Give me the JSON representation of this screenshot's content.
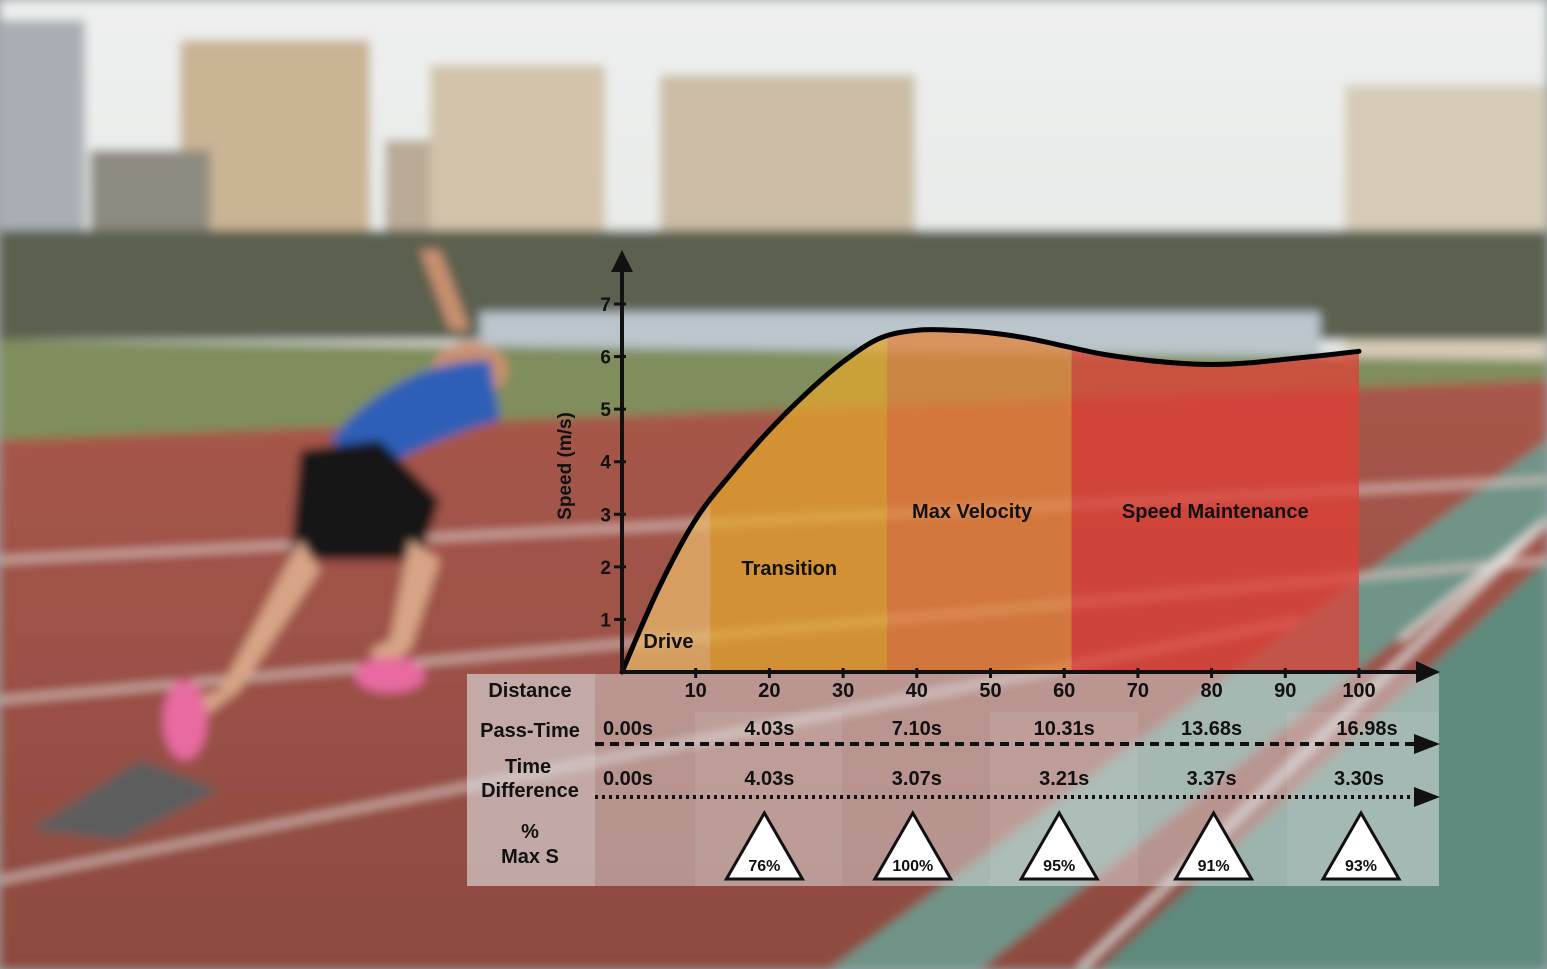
{
  "chart_data": {
    "type": "line",
    "title": "",
    "xlabel": "",
    "ylabel": "Speed (m/s)",
    "xlim": [
      0,
      100
    ],
    "ylim": [
      0,
      7
    ],
    "x_ticks": [
      10,
      20,
      30,
      40,
      50,
      60,
      70,
      80,
      90,
      100
    ],
    "y_ticks": [
      1,
      2,
      3,
      4,
      5,
      6,
      7
    ],
    "grid": false,
    "series": [
      {
        "name": "",
        "x": [
          0,
          5,
          10,
          15,
          20,
          25,
          30,
          35,
          40,
          45,
          50,
          55,
          60,
          65,
          70,
          75,
          80,
          85,
          90,
          95,
          100
        ],
        "y": [
          0,
          1.6,
          2.9,
          3.8,
          4.6,
          5.3,
          5.9,
          6.35,
          6.5,
          6.5,
          6.45,
          6.35,
          6.2,
          6.05,
          5.95,
          5.88,
          5.85,
          5.88,
          5.95,
          6.02,
          6.1
        ]
      }
    ],
    "phases": [
      {
        "label": "Drive",
        "from": 0,
        "to": 12,
        "color": "#e8b86a"
      },
      {
        "label": "Transition",
        "from": 12,
        "to": 36,
        "color": "#e3a52e"
      },
      {
        "label": "Max Velocity",
        "from": 36,
        "to": 61,
        "color": "#e3833a"
      },
      {
        "label": "Speed Maintenance",
        "from": 61,
        "to": 100,
        "color": "#df3f36"
      }
    ]
  },
  "table": {
    "distance_label": "Distance",
    "pass_time_label": "Pass-Time",
    "time_difference_label_line1": "Time",
    "time_difference_label_line2": "Difference",
    "max_speed_label_line1": "%",
    "max_speed_label_line2": "Max S",
    "pass_times": [
      {
        "at": 0,
        "value": "0.00s"
      },
      {
        "at": 20,
        "value": "4.03s"
      },
      {
        "at": 40,
        "value": "7.10s"
      },
      {
        "at": 60,
        "value": "10.31s"
      },
      {
        "at": 80,
        "value": "13.68s"
      },
      {
        "at": 100,
        "value": "16.98s"
      }
    ],
    "time_differences": [
      {
        "at": 0,
        "value": "0.00s"
      },
      {
        "at": 20,
        "value": "4.03s"
      },
      {
        "at": 40,
        "value": "3.07s"
      },
      {
        "at": 60,
        "value": "3.21s"
      },
      {
        "at": 80,
        "value": "3.37s"
      },
      {
        "at": 100,
        "value": "3.30s"
      }
    ],
    "max_speed_percent": [
      {
        "at": 20,
        "value": "76%"
      },
      {
        "at": 40,
        "value": "100%"
      },
      {
        "at": 60,
        "value": "95%"
      },
      {
        "at": 80,
        "value": "91%"
      },
      {
        "at": 100,
        "value": "93%"
      }
    ]
  }
}
